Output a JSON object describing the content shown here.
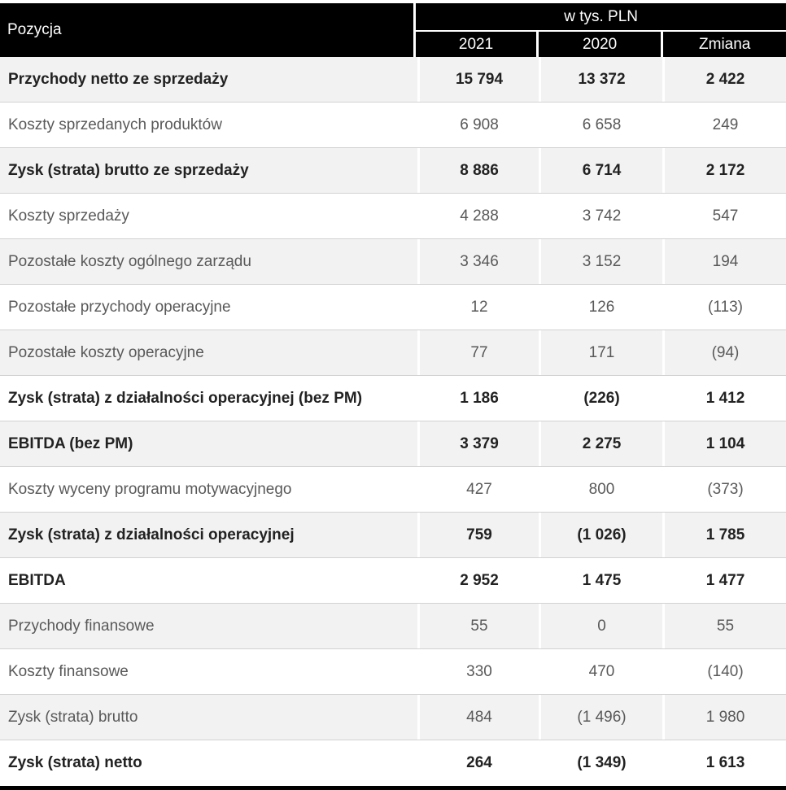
{
  "table": {
    "header": {
      "row_label": "Pozycja",
      "unit_label": "w tys. PLN",
      "columns": [
        "2021",
        "2020",
        "Zmiana"
      ]
    },
    "rows": [
      {
        "label": "Przychody netto ze sprzedaży",
        "y2021": "15 794",
        "y2020": "13 372",
        "change": "2 422",
        "bold": true
      },
      {
        "label": "Koszty sprzedanych produktów",
        "y2021": "6 908",
        "y2020": "6 658",
        "change": "249",
        "bold": false
      },
      {
        "label": "Zysk (strata) brutto ze sprzedaży",
        "y2021": "8 886",
        "y2020": "6 714",
        "change": "2 172",
        "bold": true
      },
      {
        "label": "Koszty sprzedaży",
        "y2021": "4 288",
        "y2020": "3 742",
        "change": "547",
        "bold": false
      },
      {
        "label": "Pozostałe koszty ogólnego zarządu",
        "y2021": "3 346",
        "y2020": "3 152",
        "change": "194",
        "bold": false
      },
      {
        "label": "Pozostałe przychody operacyjne",
        "y2021": "12",
        "y2020": "126",
        "change": "(113)",
        "bold": false
      },
      {
        "label": "Pozostałe koszty operacyjne",
        "y2021": "77",
        "y2020": "171",
        "change": "(94)",
        "bold": false
      },
      {
        "label": "Zysk (strata) z działalności operacyjnej (bez PM)",
        "y2021": "1 186",
        "y2020": "(226)",
        "change": "1 412",
        "bold": true
      },
      {
        "label": "EBITDA (bez PM)",
        "y2021": "3 379",
        "y2020": "2 275",
        "change": "1 104",
        "bold": true
      },
      {
        "label": "Koszty wyceny programu motywacyjnego",
        "y2021": "427",
        "y2020": "800",
        "change": "(373)",
        "bold": false
      },
      {
        "label": "Zysk (strata) z działalności operacyjnej",
        "y2021": "759",
        "y2020": "(1 026)",
        "change": "1 785",
        "bold": true
      },
      {
        "label": "EBITDA",
        "y2021": "2 952",
        "y2020": "1 475",
        "change": "1 477",
        "bold": true
      },
      {
        "label": "Przychody finansowe",
        "y2021": "55",
        "y2020": "0",
        "change": "55",
        "bold": false
      },
      {
        "label": "Koszty finansowe",
        "y2021": "330",
        "y2020": "470",
        "change": "(140)",
        "bold": false
      },
      {
        "label": "Zysk (strata) brutto",
        "y2021": "484",
        "y2020": "(1 496)",
        "change": "1 980",
        "bold": false
      },
      {
        "label": "Zysk (strata) netto",
        "y2021": "264",
        "y2020": "(1 349)",
        "change": "1 613",
        "bold": true
      }
    ]
  }
}
